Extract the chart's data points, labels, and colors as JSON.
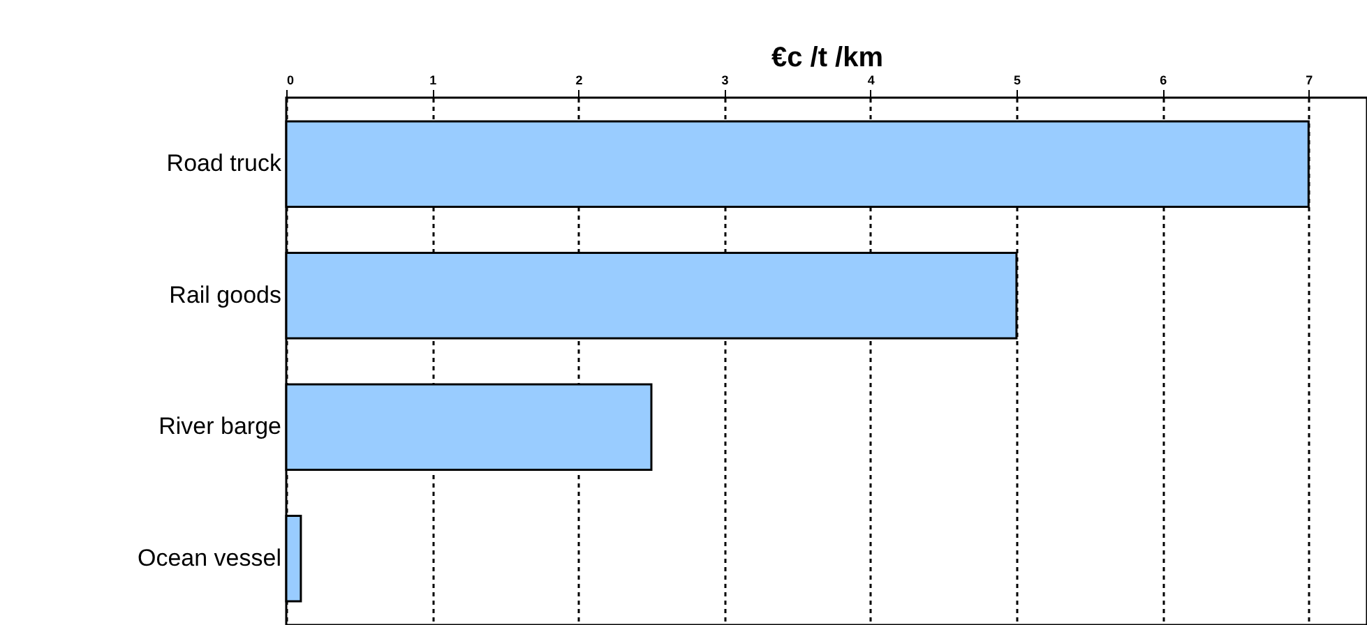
{
  "chart_data": {
    "type": "bar",
    "orientation": "horizontal",
    "xlabel": "€c /t /km",
    "categories": [
      "Road truck",
      "Rail goods",
      "River barge",
      "Ocean vessel"
    ],
    "values": [
      7,
      5,
      2.5,
      0.1
    ],
    "color": "#99ccff",
    "xlim": [
      0,
      7.4
    ],
    "xticks": [
      0,
      1,
      2,
      3,
      4,
      5,
      6,
      7
    ],
    "grid": "x"
  }
}
